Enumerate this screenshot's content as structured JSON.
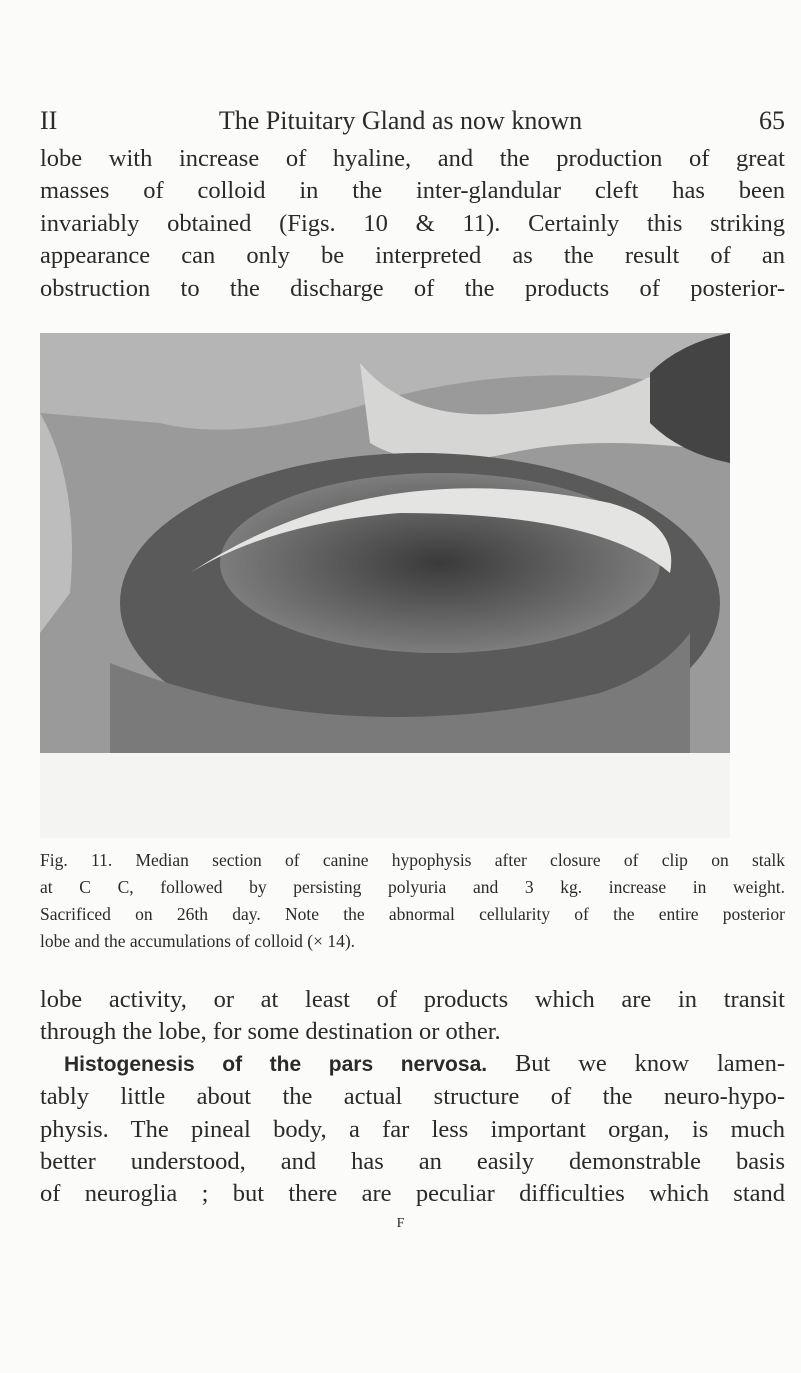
{
  "header": {
    "chapter": "II",
    "title": "The Pituitary Gland as now known",
    "page_number": "65"
  },
  "paragraph_1": {
    "lines": [
      "lobe with increase of hyaline, and the production of great",
      "masses of colloid in the inter-glandular cleft has been",
      "invariably obtained (Figs. 10 & 11). Certainly this striking",
      "appearance can only be interpreted as the result of an",
      "obstruction to the discharge of the products of posterior-"
    ]
  },
  "figure": {
    "caption_lines": [
      "Fig. 11. Median section of canine hypophysis after closure of clip on stalk",
      "at C C, followed by persisting polyuria and 3 kg. increase in weight.",
      "Sacrificed on 26th day. Note the abnormal cellularity of the entire posterior",
      "lobe and the accumulations of colloid (× 14)."
    ]
  },
  "paragraph_2": {
    "lines_before": [
      "lobe activity, or at least of products which are in transit",
      "through the lobe, for some destination or other."
    ],
    "heading": "Histogenesis of the pars nervosa.",
    "lines": [
      "But we know lamen-",
      "tably little about the actual structure of the neuro-hypo-",
      "physis. The pineal body, a far less important organ, is much",
      "better understood, and has an easily demonstrable basis",
      "of neuroglia ; but there are peculiar difficulties which stand"
    ]
  },
  "signature": "F"
}
